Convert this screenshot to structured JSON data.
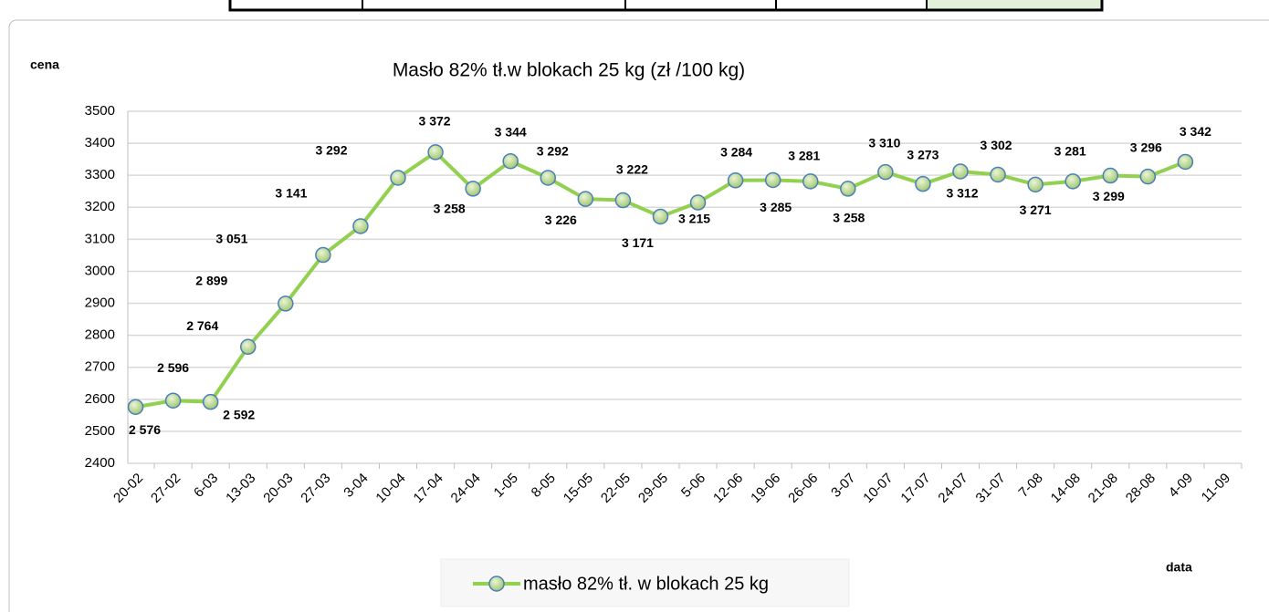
{
  "chart_data": {
    "type": "line",
    "title": "Masło 82% tł.w blokach  25 kg (zł /100 kg)",
    "y_axis_label": "cena",
    "x_axis_label": "data",
    "categories": [
      "20-02",
      "27-02",
      "6-03",
      "13-03",
      "20-03",
      "27-03",
      "3-04",
      "10-04",
      "17-04",
      "24-04",
      "1-05",
      "8-05",
      "15-05",
      "22-05",
      "29-05",
      "5-06",
      "12-06",
      "19-06",
      "26-06",
      "3-07",
      "10-07",
      "17-07",
      "24-07",
      "31-07",
      "7-08",
      "14-08",
      "21-08",
      "28-08",
      "4-09",
      "11-09"
    ],
    "series": [
      {
        "name": "masło 82% tł. w blokach 25 kg",
        "color": "#92d050",
        "values": [
          2576,
          2596,
          2592,
          2764,
          2899,
          3051,
          3141,
          3292,
          3372,
          3258,
          3344,
          3292,
          3226,
          3222,
          3171,
          3215,
          3284,
          3285,
          3281,
          3258,
          3310,
          3273,
          3312,
          3302,
          3271,
          3281,
          3299,
          3296,
          3342,
          null
        ],
        "value_labels": [
          "2 576",
          "2 596",
          "2 592",
          "2 764",
          "2 899",
          "3 051",
          "3 141",
          "3 292",
          "3 372",
          "3 258",
          "3 344",
          "3 292",
          "3 226",
          "3 222",
          "3 171",
          "3 215",
          "3 284",
          "3 285",
          "3 281",
          "3 258",
          "3 310",
          "3 273",
          "3 312",
          "3 302",
          "3 271",
          "3 281",
          "3 299",
          "3 296",
          "3 342",
          null
        ]
      }
    ],
    "ylim": [
      2400,
      3500
    ],
    "yticks": [
      2400,
      2500,
      2600,
      2700,
      2800,
      2900,
      3000,
      3100,
      3200,
      3300,
      3400,
      3500
    ],
    "grid": true,
    "legend": "bottom"
  }
}
